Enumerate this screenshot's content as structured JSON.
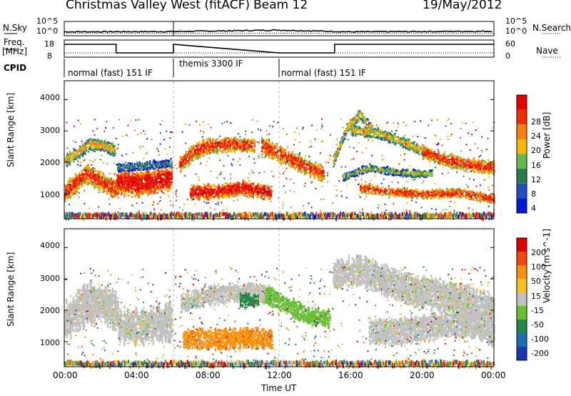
{
  "header": {
    "site": "Christmas Valley West (fitACF)",
    "beam": "Beam 12",
    "date": "19/May/2012"
  },
  "params": {
    "nsky_label": "N.Sky",
    "nsearch_label": "N.Search",
    "freq_label_1": "Freq.",
    "freq_label_2": "[MHz]",
    "nave_label": "Nave",
    "cpid_label": "CPID",
    "noise_ticks": [
      "10^5",
      "10^0"
    ],
    "noise_ticks_right": [
      "10^5",
      "10^0"
    ],
    "freq_ticks": [
      "18",
      "8"
    ],
    "nave_ticks": [
      "60",
      "0"
    ]
  },
  "cpid_segments": [
    {
      "label": "normal (fast) 151 IF",
      "start": 0.0,
      "end": 6.1
    },
    {
      "label": "themis 3300 IF",
      "start": 6.1,
      "end": 12.0
    },
    {
      "label": "normal (fast) 151 IF",
      "start": 12.0,
      "end": 24.0
    }
  ],
  "axes": {
    "ylabel": "Slant Range [km]",
    "xlabel": "Time UT",
    "y_ticks": [
      "1000",
      "2000",
      "3000",
      "4000"
    ],
    "x_ticks": [
      "00:00",
      "04:00",
      "08:00",
      "12:00",
      "16:00",
      "20:00",
      "00:00"
    ]
  },
  "colorbars": {
    "power": {
      "label": "Power [dB]",
      "ticks": [
        "4",
        "8",
        "12",
        "16",
        "20",
        "24",
        "28"
      ],
      "colors": [
        "#0018d8",
        "#2050c0",
        "#2a7a4a",
        "#68b850",
        "#f8b800",
        "#f88010",
        "#f03000",
        "#e80000"
      ]
    },
    "velocity": {
      "label": "Velocity [m s^-1]",
      "ticks": [
        "200",
        "100",
        "50",
        "15",
        "-15",
        "-50",
        "-100",
        "-200"
      ],
      "colors": [
        "#1838b0",
        "#1870b0",
        "#228844",
        "#68c030",
        "#c0c0c0",
        "#f8c020",
        "#f89010",
        "#f04810",
        "#e00000"
      ]
    }
  },
  "chart_data": [
    {
      "type": "line",
      "title": "N.Sky / N.Search",
      "x_range": [
        0,
        24
      ],
      "ylim_log": [
        0,
        5
      ],
      "series": [
        {
          "name": "N.Sky",
          "x": [
            0,
            6.1,
            6.2,
            12,
            16,
            24
          ],
          "values": [
            1.2,
            1.3,
            1.3,
            1.8,
            1.2,
            1.4
          ]
        },
        {
          "name": "N.Search",
          "x": [
            0,
            24
          ],
          "values": [
            0.9,
            0.9
          ]
        }
      ]
    },
    {
      "type": "line",
      "title": "Freq. / Nave",
      "x_range": [
        0,
        24
      ],
      "series": [
        {
          "name": "Freq. [MHz]",
          "x": [
            0,
            2.9,
            2.9,
            6.1,
            6.1,
            12,
            12,
            15.1,
            15.1,
            24
          ],
          "values": [
            15.5,
            15.5,
            10.5,
            10.5,
            15.5,
            10.5,
            10.5,
            10.5,
            15.5,
            15.5
          ]
        },
        {
          "name": "Nave",
          "x": [
            0,
            24
          ],
          "values": [
            15,
            15
          ]
        }
      ]
    },
    {
      "type": "heatmap",
      "title": "Power [dB]",
      "x_range": [
        0,
        24
      ],
      "ylim": [
        200,
        4600
      ],
      "features": [
        {
          "t": [
            0,
            1.2,
            2.2,
            3.0
          ],
          "r": [
            1000,
            1600,
            1300,
            1100
          ],
          "w": 280,
          "level": 6
        },
        {
          "t": [
            0,
            1.4,
            2.2,
            2.8
          ],
          "r": [
            2000,
            2550,
            2500,
            2350
          ],
          "w": 180,
          "level": 4
        },
        {
          "t": [
            2.9,
            4.0,
            5.0,
            6.0
          ],
          "r": [
            1350,
            1300,
            1350,
            1500
          ],
          "w": 380,
          "level": 7
        },
        {
          "t": [
            2.9,
            4.2,
            6.0
          ],
          "r": [
            1800,
            1850,
            1950
          ],
          "w": 120,
          "level": 2
        },
        {
          "t": [
            6.4,
            7.2,
            8.0,
            9.5,
            10.6
          ],
          "r": [
            1900,
            2300,
            2500,
            2550,
            2500
          ],
          "w": 220,
          "level": 6
        },
        {
          "t": [
            7.0,
            8.5,
            10.0,
            11.5
          ],
          "r": [
            1000,
            1050,
            1150,
            1000
          ],
          "w": 220,
          "level": 7
        },
        {
          "t": [
            11.0,
            12.3,
            13.4,
            14.5
          ],
          "r": [
            2500,
            2150,
            1850,
            1600
          ],
          "w": 240,
          "level": 6
        },
        {
          "t": [
            15.0,
            15.8,
            16.5,
            17.2
          ],
          "r": [
            2000,
            3100,
            3500,
            3000
          ],
          "w": 140,
          "level": 4
        },
        {
          "t": [
            16.0,
            17.5,
            19.0,
            20.5
          ],
          "r": [
            3000,
            2900,
            2600,
            2200
          ],
          "w": 150,
          "level": 4
        },
        {
          "t": [
            20.0,
            21.3,
            22.5,
            24.0
          ],
          "r": [
            2300,
            2050,
            1900,
            1800
          ],
          "w": 200,
          "level": 6
        },
        {
          "t": [
            16.5,
            18.0,
            20.0,
            22.0,
            24.0
          ],
          "r": [
            1150,
            1050,
            950,
            1000,
            800
          ],
          "w": 130,
          "level": 6
        },
        {
          "t": [
            15.5,
            17.0,
            18.5,
            20.5
          ],
          "r": [
            1500,
            1800,
            1650,
            1600
          ],
          "w": 110,
          "level": 3
        }
      ]
    },
    {
      "type": "heatmap",
      "title": "Velocity [m s^-1]",
      "x_range": [
        0,
        24
      ],
      "ylim": [
        200,
        4600
      ],
      "features": [
        {
          "t": [
            0,
            1.2,
            2.2,
            3.0
          ],
          "r": [
            1600,
            2200,
            2200,
            1900
          ],
          "w": 600,
          "level": 4
        },
        {
          "t": [
            3.0,
            4.3,
            6.0
          ],
          "r": [
            1500,
            1450,
            1600
          ],
          "w": 550,
          "level": 4
        },
        {
          "t": [
            6.5,
            8.0,
            10.0,
            11.5
          ],
          "r": [
            2200,
            2450,
            2550,
            2450
          ],
          "w": 300,
          "level": 4
        },
        {
          "t": [
            6.6,
            8.5,
            10.0,
            11.6
          ],
          "r": [
            1050,
            1050,
            1100,
            1050
          ],
          "w": 300,
          "level": 6
        },
        {
          "t": [
            9.8,
            10.8
          ],
          "r": [
            2300,
            2300
          ],
          "w": 200,
          "level": 2
        },
        {
          "t": [
            11.2,
            12.5,
            13.6,
            14.8
          ],
          "r": [
            2500,
            2100,
            1800,
            1700
          ],
          "w": 260,
          "level": 3
        },
        {
          "t": [
            15.0,
            16.5,
            18.0,
            20.0
          ],
          "r": [
            3100,
            3250,
            2900,
            2500
          ],
          "w": 450,
          "level": 4
        },
        {
          "t": [
            17.0,
            19.0,
            21.0,
            23.0,
            24.0
          ],
          "r": [
            1300,
            1300,
            1500,
            1500,
            1200
          ],
          "w": 400,
          "level": 4
        },
        {
          "t": [
            20.0,
            22.0,
            24.0
          ],
          "r": [
            2600,
            2300,
            2000
          ],
          "w": 500,
          "level": 4
        }
      ]
    }
  ]
}
